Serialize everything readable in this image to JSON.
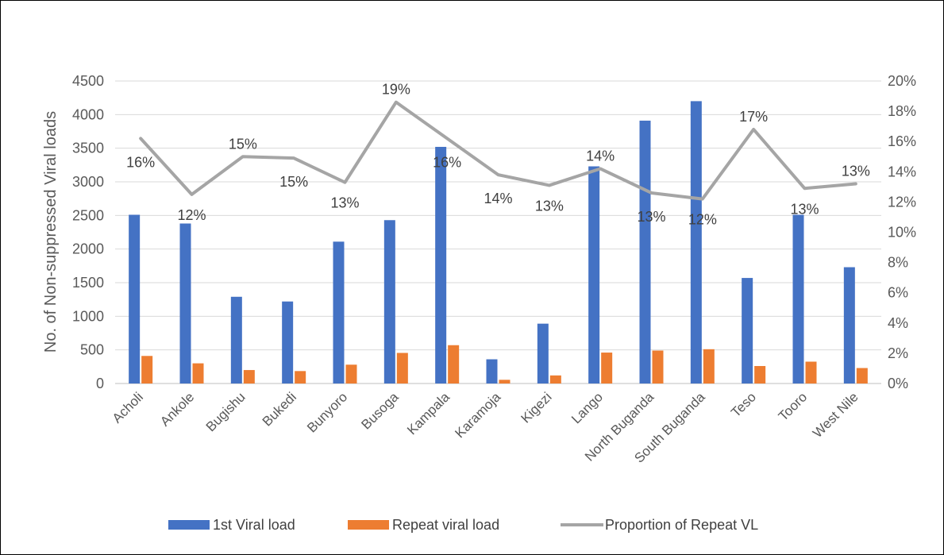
{
  "chart_data": {
    "type": "bar",
    "categories": [
      "Acholi",
      "Ankole",
      "Bugishu",
      "Bukedi",
      "Bunyoro",
      "Busoga",
      "Kampala",
      "Karamoja",
      "Kigezi",
      "Lango",
      "North Buganda",
      "South Buganda",
      "Teso",
      "Tooro",
      "West Nile"
    ],
    "series": [
      {
        "name": "1st Viral load",
        "type": "bar",
        "axis": "left",
        "color": "#4472C4",
        "values": [
          2510,
          2380,
          1290,
          1220,
          2110,
          2430,
          3520,
          360,
          890,
          3230,
          3910,
          4200,
          1570,
          2510,
          1730
        ]
      },
      {
        "name": "Repeat viral load",
        "type": "bar",
        "axis": "left",
        "color": "#ED7D31",
        "values": [
          410,
          300,
          200,
          185,
          280,
          455,
          570,
          55,
          120,
          460,
          490,
          510,
          260,
          325,
          230
        ]
      },
      {
        "name": "Proportion of Repeat VL",
        "type": "line",
        "axis": "right",
        "color": "#A5A5A5",
        "values": [
          16.2,
          12.5,
          15.0,
          14.9,
          13.3,
          18.6,
          16.2,
          13.8,
          13.1,
          14.2,
          12.6,
          12.2,
          16.8,
          12.9,
          13.2
        ],
        "labels": [
          "16%",
          "12%",
          "15%",
          "15%",
          "13%",
          "19%",
          "16%",
          "14%",
          "13%",
          "14%",
          "13%",
          "12%",
          "17%",
          "13%",
          "13%"
        ]
      }
    ],
    "ylabel": "No. of Non-suppressed Viral loads",
    "ylim": [
      0,
      4500
    ],
    "y_ticks": [
      "0",
      "500",
      "1000",
      "1500",
      "2000",
      "2500",
      "3000",
      "3500",
      "4000",
      "4500"
    ],
    "y2lim": [
      0,
      20
    ],
    "y2_ticks": [
      "0%",
      "2%",
      "4%",
      "6%",
      "8%",
      "10%",
      "12%",
      "14%",
      "16%",
      "18%",
      "20%"
    ],
    "grid": true,
    "legend": "bottom"
  }
}
